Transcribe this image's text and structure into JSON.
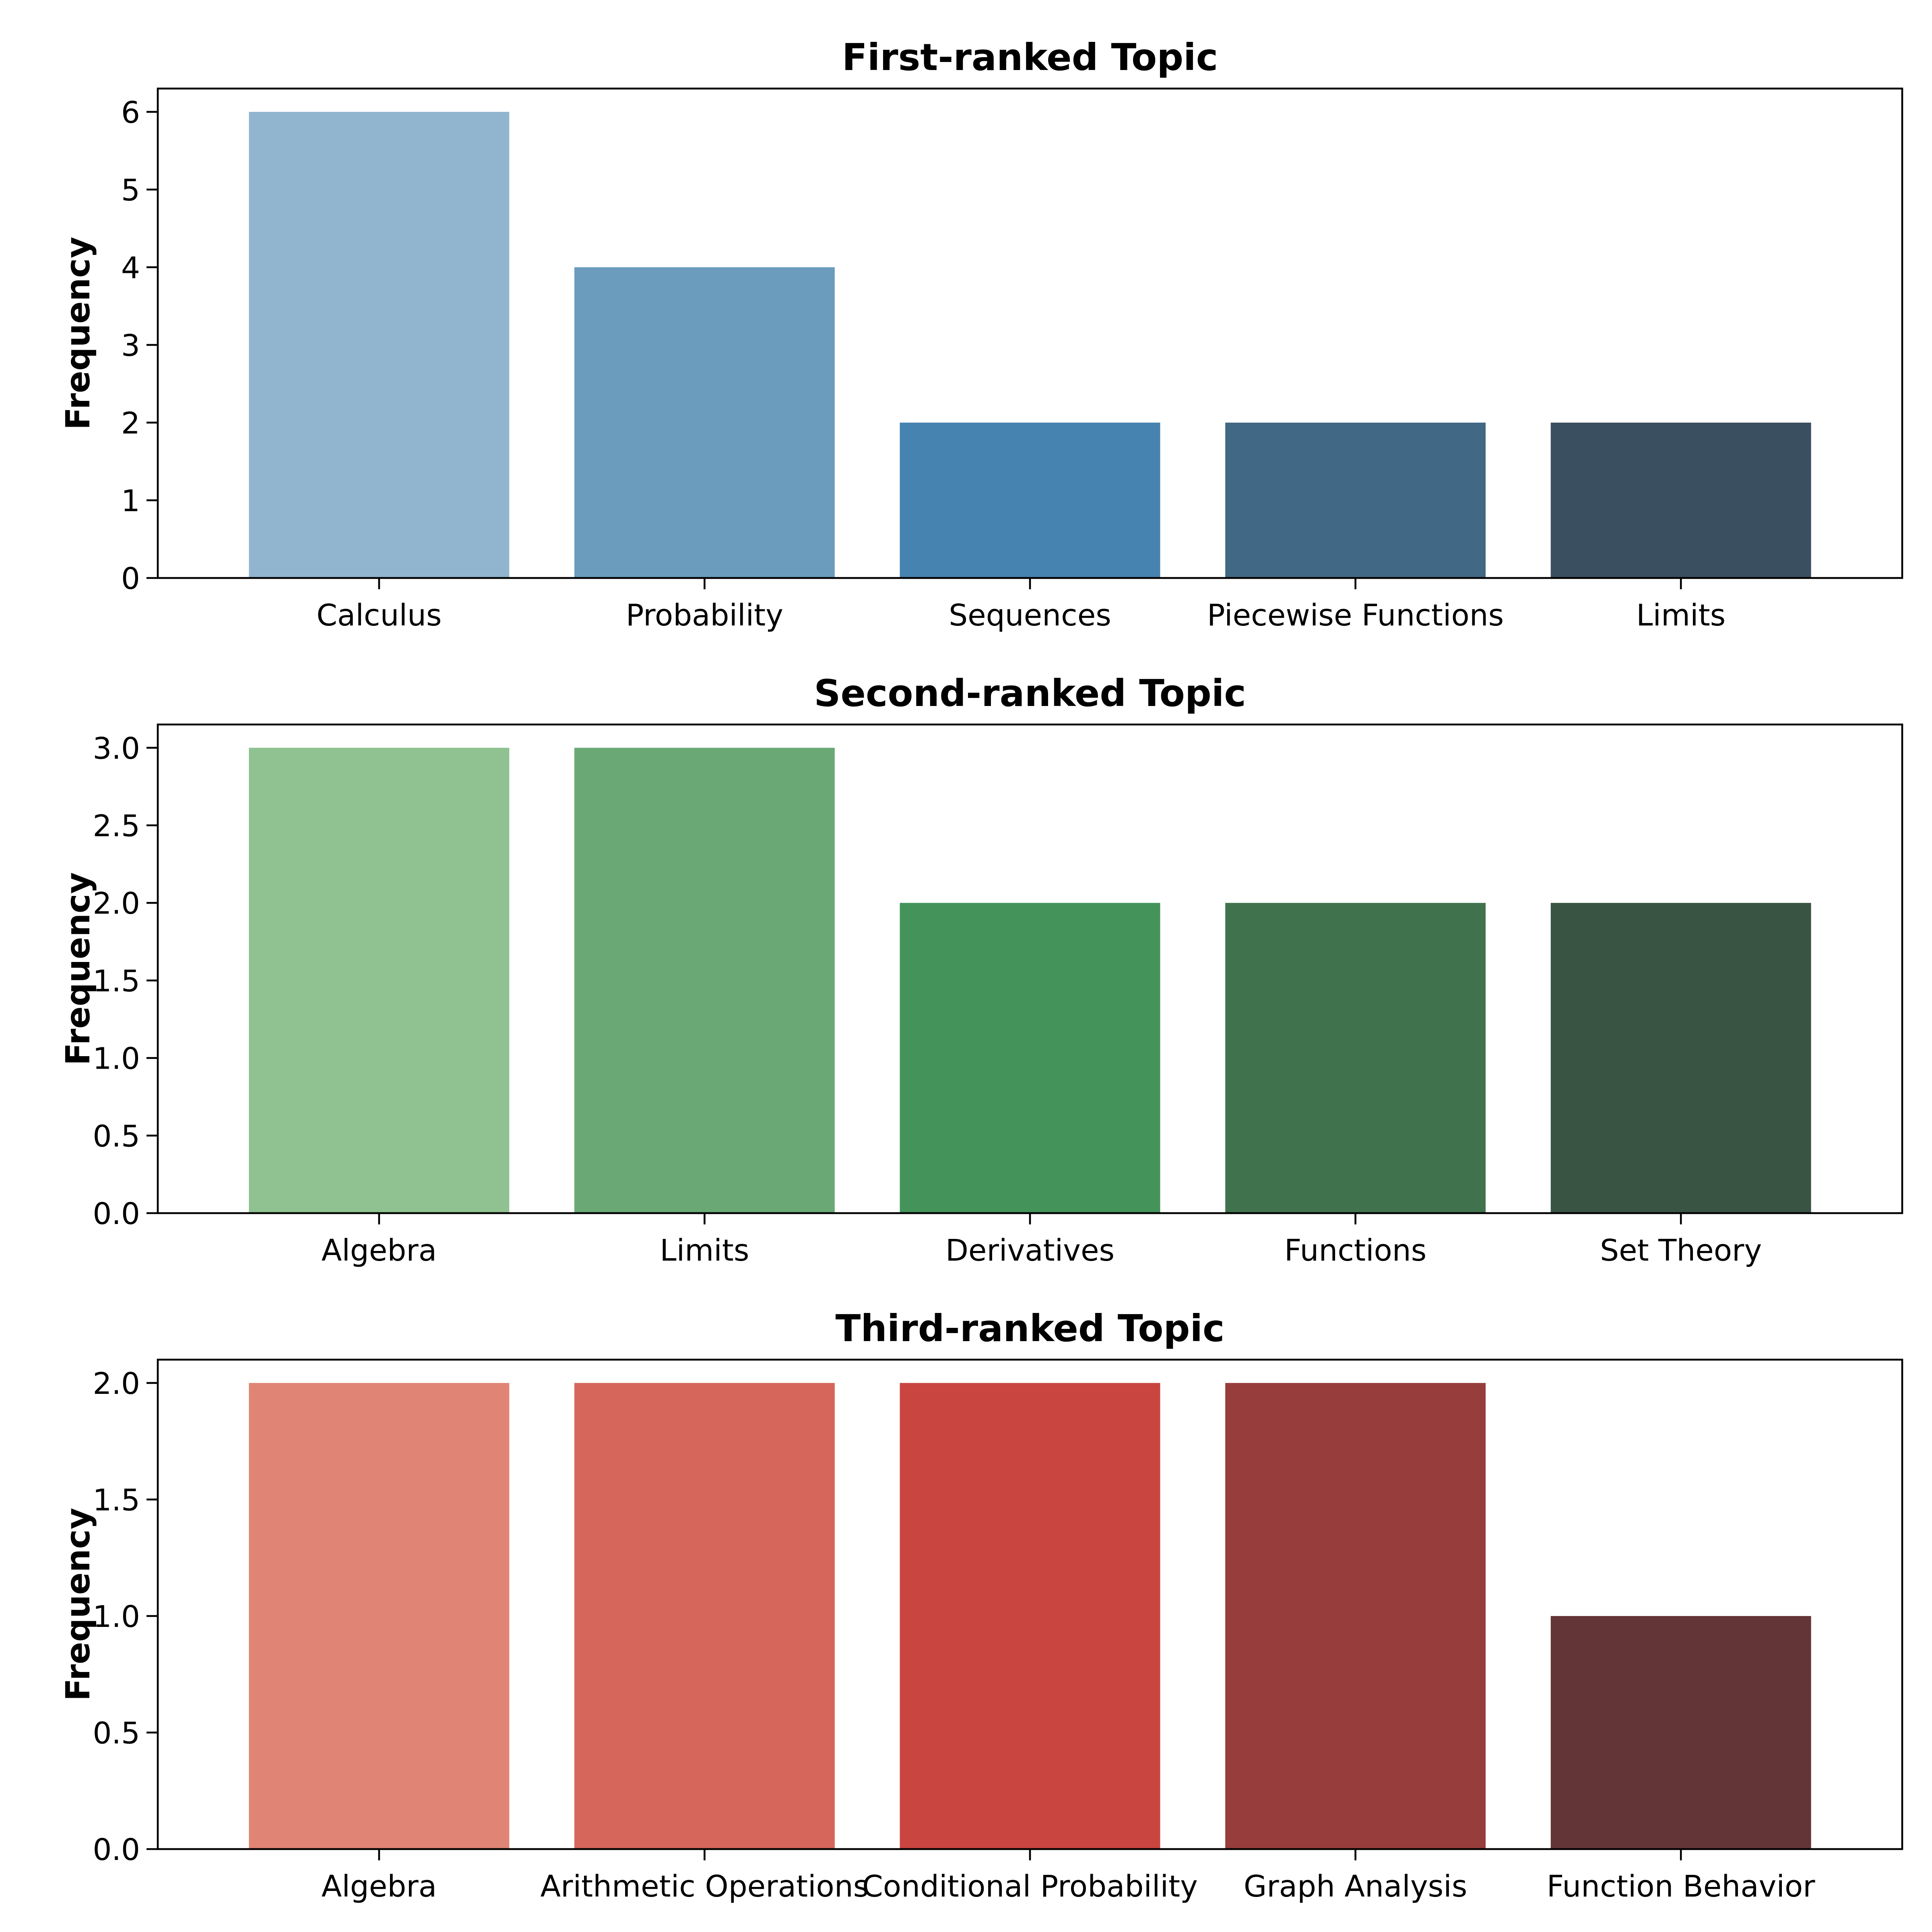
{
  "chart_data": [
    {
      "type": "bar",
      "title": "First-ranked Topic",
      "xlabel": "",
      "ylabel": "Frequency",
      "categories": [
        "Calculus",
        "Probability",
        "Sequences",
        "Piecewise Functions",
        "Limits"
      ],
      "values": [
        6,
        4,
        2,
        2,
        2
      ],
      "ylim": [
        0,
        6.3
      ],
      "yticks": [
        0,
        1,
        2,
        3,
        4,
        5,
        6
      ],
      "ytick_labels": [
        "0",
        "1",
        "2",
        "3",
        "4",
        "5",
        "6"
      ],
      "colors": [
        "#92b5cf",
        "#6b9cbe",
        "#4783b0",
        "#416884",
        "#3a4f5f"
      ]
    },
    {
      "type": "bar",
      "title": "Second-ranked Topic",
      "xlabel": "",
      "ylabel": "Frequency",
      "categories": [
        "Algebra",
        "Limits",
        "Derivatives",
        "Functions",
        "Set Theory"
      ],
      "values": [
        3,
        3,
        2,
        2,
        2
      ],
      "ylim": [
        0,
        3.15
      ],
      "yticks": [
        0,
        0.5,
        1,
        1.5,
        2,
        2.5,
        3
      ],
      "ytick_labels": [
        "0.0",
        "0.5",
        "1.0",
        "1.5",
        "2.0",
        "2.5",
        "3.0"
      ],
      "colors": [
        "#90c190",
        "#6aa975",
        "#44935b",
        "#41724e",
        "#3a5444"
      ]
    },
    {
      "type": "bar",
      "title": "Third-ranked Topic",
      "xlabel": "",
      "ylabel": "Frequency",
      "categories": [
        "Algebra",
        "Arithmetic Operations",
        "Conditional Probability",
        "Graph Analysis",
        "Function Behavior"
      ],
      "values": [
        2,
        2,
        2,
        2,
        1
      ],
      "ylim": [
        0,
        2.1
      ],
      "yticks": [
        0,
        0.5,
        1,
        1.5,
        2
      ],
      "ytick_labels": [
        "0.0",
        "0.5",
        "1.0",
        "1.5",
        "2.0"
      ],
      "colors": [
        "#e08575",
        "#d6665c",
        "#c94540",
        "#973d3b",
        "#643536"
      ]
    }
  ]
}
